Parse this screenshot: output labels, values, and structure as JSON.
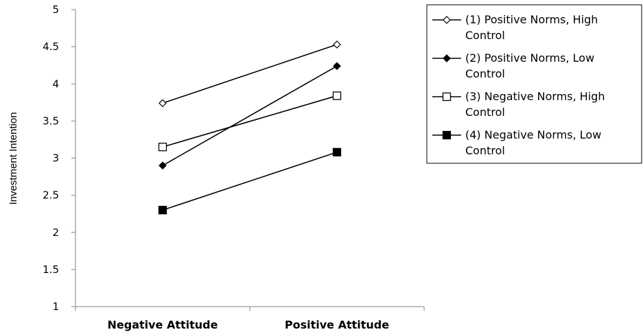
{
  "chart_data": {
    "type": "line",
    "title": "",
    "xlabel": "",
    "ylabel": "Investment Intention",
    "categories": [
      "Negative Attitude",
      "Positive Attitude"
    ],
    "ylim": [
      1,
      5
    ],
    "yticks": [
      "1",
      "1.5",
      "2",
      "2.5",
      "3",
      "3.5",
      "4",
      "4.5",
      "5"
    ],
    "grid": false,
    "legend_position": "right",
    "series": [
      {
        "name": "(1) Positive Norms, High Control",
        "legend_lines": [
          "(1) Positive Norms, High",
          "Control"
        ],
        "values": [
          3.74,
          4.53
        ],
        "marker": "diamond",
        "filled": false,
        "color": "#000000"
      },
      {
        "name": "(2) Positive Norms, Low Control",
        "legend_lines": [
          "(2) Positive Norms, Low",
          "Control"
        ],
        "values": [
          2.9,
          4.24
        ],
        "marker": "diamond",
        "filled": true,
        "color": "#000000"
      },
      {
        "name": "(3) Negative Norms, High Control",
        "legend_lines": [
          "(3) Negative Norms, High",
          "Control"
        ],
        "values": [
          3.15,
          3.84
        ],
        "marker": "square",
        "filled": false,
        "color": "#000000"
      },
      {
        "name": "(4) Negative Norms, Low Control",
        "legend_lines": [
          "(4) Negative Norms, Low",
          "Control"
        ],
        "values": [
          2.3,
          3.08
        ],
        "marker": "square",
        "filled": true,
        "color": "#000000"
      }
    ]
  }
}
